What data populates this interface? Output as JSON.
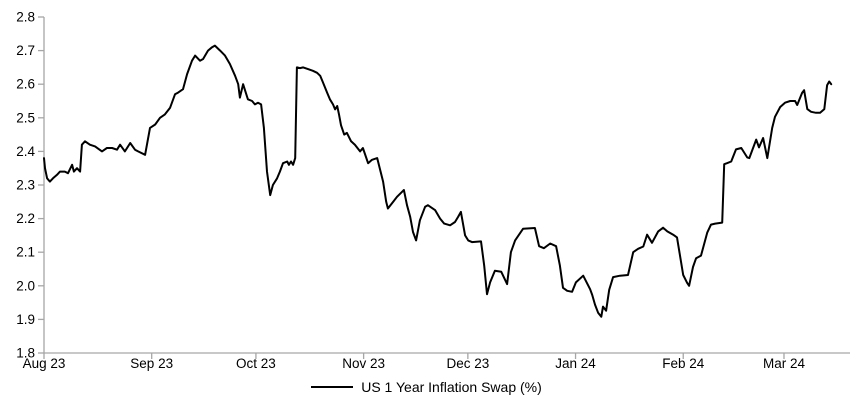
{
  "colors": {
    "line": "#000000",
    "axis": "#a6a6a6",
    "text": "#000000",
    "background": "#ffffff"
  },
  "legend": {
    "label": "US 1 Year Inflation Swap (%)"
  },
  "chart_data": {
    "type": "line",
    "title": "",
    "xlabel": "",
    "ylabel": "",
    "grid": false,
    "legend_position": "bottom-center",
    "ylim": [
      1.8,
      2.8
    ],
    "y_tick_step": 0.1,
    "y_tick_labels": [
      "2.8",
      "2.7",
      "2.6",
      "2.5",
      "2.4",
      "2.3",
      "2.2",
      "2.1",
      "2.0",
      "1.9",
      "1.8"
    ],
    "x_ticks": [
      {
        "label": "Aug 23",
        "day": 0
      },
      {
        "label": "Sep 23",
        "day": 31
      },
      {
        "label": "Oct 23",
        "day": 61
      },
      {
        "label": "Nov 23",
        "day": 92
      },
      {
        "label": "Dec 23",
        "day": 122
      },
      {
        "label": "Jan 24",
        "day": 153
      },
      {
        "label": "Feb 24",
        "day": 184
      },
      {
        "label": "Mar 24",
        "day": 213
      }
    ],
    "x_axis_day_span": [
      0,
      232
    ],
    "series": [
      {
        "name": "US 1 Year Inflation Swap (%)",
        "color": "#000000",
        "points": [
          [
            0,
            2.38
          ],
          [
            0.3,
            2.35
          ],
          [
            0.9,
            2.32
          ],
          [
            1.7,
            2.31
          ],
          [
            2.6,
            2.32
          ],
          [
            3.7,
            2.33
          ],
          [
            4.6,
            2.34
          ],
          [
            6,
            2.34
          ],
          [
            6.9,
            2.335
          ],
          [
            8.1,
            2.36
          ],
          [
            8.6,
            2.34
          ],
          [
            9.5,
            2.35
          ],
          [
            10.4,
            2.34
          ],
          [
            10.9,
            2.42
          ],
          [
            11.8,
            2.43
          ],
          [
            13.2,
            2.42
          ],
          [
            14.7,
            2.415
          ],
          [
            16.7,
            2.4
          ],
          [
            18.1,
            2.41
          ],
          [
            19.6,
            2.41
          ],
          [
            21,
            2.405
          ],
          [
            21.9,
            2.42
          ],
          [
            23.3,
            2.4
          ],
          [
            24.8,
            2.425
          ],
          [
            26.2,
            2.405
          ],
          [
            27.1,
            2.4
          ],
          [
            29.1,
            2.39
          ],
          [
            30.5,
            2.47
          ],
          [
            32,
            2.48
          ],
          [
            33.4,
            2.5
          ],
          [
            34.8,
            2.51
          ],
          [
            36.3,
            2.53
          ],
          [
            37.7,
            2.57
          ],
          [
            38.6,
            2.575
          ],
          [
            40,
            2.585
          ],
          [
            41.2,
            2.63
          ],
          [
            42.6,
            2.67
          ],
          [
            43.5,
            2.685
          ],
          [
            44.9,
            2.67
          ],
          [
            45.8,
            2.675
          ],
          [
            47.2,
            2.7
          ],
          [
            48.4,
            2.71
          ],
          [
            49.2,
            2.715
          ],
          [
            50.7,
            2.7
          ],
          [
            52.1,
            2.685
          ],
          [
            53.5,
            2.66
          ],
          [
            55,
            2.625
          ],
          [
            55.9,
            2.6
          ],
          [
            56.4,
            2.56
          ],
          [
            57.3,
            2.6
          ],
          [
            58.7,
            2.555
          ],
          [
            59.9,
            2.55
          ],
          [
            60.7,
            2.54
          ],
          [
            61.6,
            2.545
          ],
          [
            62.5,
            2.54
          ],
          [
            63.3,
            2.47
          ],
          [
            64.2,
            2.34
          ],
          [
            65.1,
            2.27
          ],
          [
            65.9,
            2.3
          ],
          [
            67.1,
            2.32
          ],
          [
            67.9,
            2.34
          ],
          [
            68.8,
            2.365
          ],
          [
            70,
            2.37
          ],
          [
            70.5,
            2.36
          ],
          [
            71.1,
            2.37
          ],
          [
            71.7,
            2.36
          ],
          [
            72.3,
            2.38
          ],
          [
            72.8,
            2.65
          ],
          [
            73.7,
            2.648
          ],
          [
            74.6,
            2.65
          ],
          [
            76,
            2.645
          ],
          [
            77.4,
            2.64
          ],
          [
            78.6,
            2.634
          ],
          [
            79.5,
            2.625
          ],
          [
            80.3,
            2.605
          ],
          [
            81.5,
            2.575
          ],
          [
            82.3,
            2.555
          ],
          [
            83.2,
            2.54
          ],
          [
            83.8,
            2.525
          ],
          [
            84.4,
            2.535
          ],
          [
            84.9,
            2.51
          ],
          [
            85.5,
            2.478
          ],
          [
            86.4,
            2.45
          ],
          [
            87.2,
            2.455
          ],
          [
            88.4,
            2.43
          ],
          [
            89.5,
            2.42
          ],
          [
            91,
            2.4
          ],
          [
            91.8,
            2.41
          ],
          [
            93.3,
            2.365
          ],
          [
            94.4,
            2.375
          ],
          [
            95.9,
            2.38
          ],
          [
            97.6,
            2.31
          ],
          [
            98.5,
            2.25
          ],
          [
            99,
            2.23
          ],
          [
            100.5,
            2.25
          ],
          [
            101.6,
            2.265
          ],
          [
            103.1,
            2.28
          ],
          [
            103.6,
            2.285
          ],
          [
            104.5,
            2.24
          ],
          [
            105.4,
            2.205
          ],
          [
            106.2,
            2.16
          ],
          [
            107.1,
            2.135
          ],
          [
            108.2,
            2.195
          ],
          [
            109.7,
            2.235
          ],
          [
            110.5,
            2.24
          ],
          [
            112.6,
            2.225
          ],
          [
            114,
            2.2
          ],
          [
            115.2,
            2.185
          ],
          [
            116.9,
            2.18
          ],
          [
            118.3,
            2.19
          ],
          [
            119.2,
            2.205
          ],
          [
            120,
            2.22
          ],
          [
            121.2,
            2.15
          ],
          [
            122.1,
            2.135
          ],
          [
            123.2,
            2.13
          ],
          [
            125.8,
            2.132
          ],
          [
            126.7,
            2.06
          ],
          [
            127.5,
            1.975
          ],
          [
            128.4,
            2.01
          ],
          [
            129.8,
            2.045
          ],
          [
            131.6,
            2.042
          ],
          [
            133.3,
            2.005
          ],
          [
            134.4,
            2.1
          ],
          [
            135.6,
            2.135
          ],
          [
            137.9,
            2.17
          ],
          [
            141.3,
            2.172
          ],
          [
            142.5,
            2.118
          ],
          [
            143.9,
            2.112
          ],
          [
            145.7,
            2.126
          ],
          [
            147.4,
            2.118
          ],
          [
            148.5,
            2.06
          ],
          [
            149.4,
            1.994
          ],
          [
            150.6,
            1.985
          ],
          [
            152,
            1.982
          ],
          [
            153.1,
            2.01
          ],
          [
            155.2,
            2.03
          ],
          [
            157.2,
            1.99
          ],
          [
            157.8,
            1.973
          ],
          [
            158.6,
            1.944
          ],
          [
            159.5,
            1.92
          ],
          [
            160.4,
            1.908
          ],
          [
            160.9,
            1.938
          ],
          [
            161.8,
            1.926
          ],
          [
            162.7,
            1.988
          ],
          [
            163.8,
            2.026
          ],
          [
            165.8,
            2.03
          ],
          [
            168.1,
            2.032
          ],
          [
            169.6,
            2.1
          ],
          [
            171,
            2.11
          ],
          [
            172.5,
            2.117
          ],
          [
            173.6,
            2.152
          ],
          [
            175,
            2.128
          ],
          [
            176.8,
            2.162
          ],
          [
            178.2,
            2.173
          ],
          [
            179.4,
            2.162
          ],
          [
            181.1,
            2.152
          ],
          [
            182.2,
            2.144
          ],
          [
            184,
            2.032
          ],
          [
            185.1,
            2.009
          ],
          [
            185.7,
            2
          ],
          [
            186.8,
            2.056
          ],
          [
            187.7,
            2.082
          ],
          [
            189.1,
            2.09
          ],
          [
            190.9,
            2.158
          ],
          [
            192,
            2.182
          ],
          [
            193.2,
            2.185
          ],
          [
            195.2,
            2.188
          ],
          [
            195.8,
            2.362
          ],
          [
            196.6,
            2.365
          ],
          [
            197.8,
            2.37
          ],
          [
            199.2,
            2.406
          ],
          [
            200.7,
            2.41
          ],
          [
            202.4,
            2.382
          ],
          [
            203,
            2.38
          ],
          [
            205,
            2.435
          ],
          [
            205.8,
            2.412
          ],
          [
            207,
            2.44
          ],
          [
            208.2,
            2.38
          ],
          [
            209.6,
            2.47
          ],
          [
            210.4,
            2.503
          ],
          [
            211.9,
            2.532
          ],
          [
            213.3,
            2.545
          ],
          [
            214.8,
            2.55
          ],
          [
            216.2,
            2.55
          ],
          [
            216.8,
            2.538
          ],
          [
            218.2,
            2.574
          ],
          [
            218.8,
            2.582
          ],
          [
            219.7,
            2.526
          ],
          [
            220.8,
            2.518
          ],
          [
            222.2,
            2.515
          ],
          [
            223.4,
            2.515
          ],
          [
            224.6,
            2.526
          ],
          [
            225.4,
            2.597
          ],
          [
            226,
            2.608
          ],
          [
            226.6,
            2.6
          ]
        ]
      }
    ]
  }
}
